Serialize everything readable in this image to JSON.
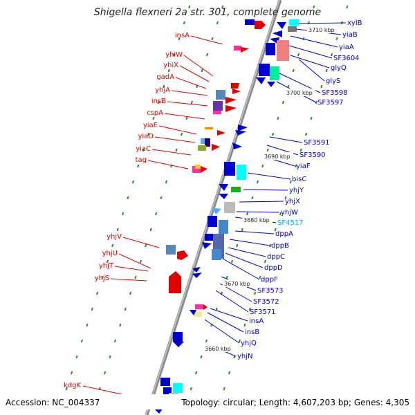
{
  "title": "Shigella flexneri 2a str. 301, complete genome",
  "footer": {
    "accession": "Accession: NC_004337",
    "topology": "Topology: circular; Length: 4,607,203 bp; Genes: 4,305"
  },
  "kbp_marks": [
    "3710 kbp",
    "3700 kbp",
    "3690 kbp",
    "3680 kbp",
    "3670 kbp",
    "3660 kbp"
  ],
  "left_labels": [
    "insA",
    "yhiW",
    "yhiX",
    "gadA",
    "yhjA",
    "insB",
    "cspA",
    "yiaE",
    "yiaD",
    "yiaC",
    "tag",
    "yhjV",
    "yhjU",
    "yhjT",
    "yhjS",
    "kdgK"
  ],
  "right_labels": [
    "xylB",
    "yiaB",
    "yiaA",
    "SF3604",
    "glyQ",
    "glyS",
    "SF3598",
    "SF3597",
    "SF3591",
    "SF3590",
    "yiaF",
    "bisC",
    "yhjY",
    "yhjX",
    "yhjW",
    "SF4517",
    "dppA",
    "dppB",
    "dppC",
    "dppD",
    "dppF",
    "SF3573",
    "SF3572",
    "SF3571",
    "insA",
    "insB",
    "yhjQ",
    "yhjN"
  ],
  "colors": {
    "forward_strand": "#e00000",
    "reverse_strand": "#0000cc",
    "highlight_label": "#00b0f0",
    "backbone": "#888888",
    "tick": "#2a8a2a"
  }
}
